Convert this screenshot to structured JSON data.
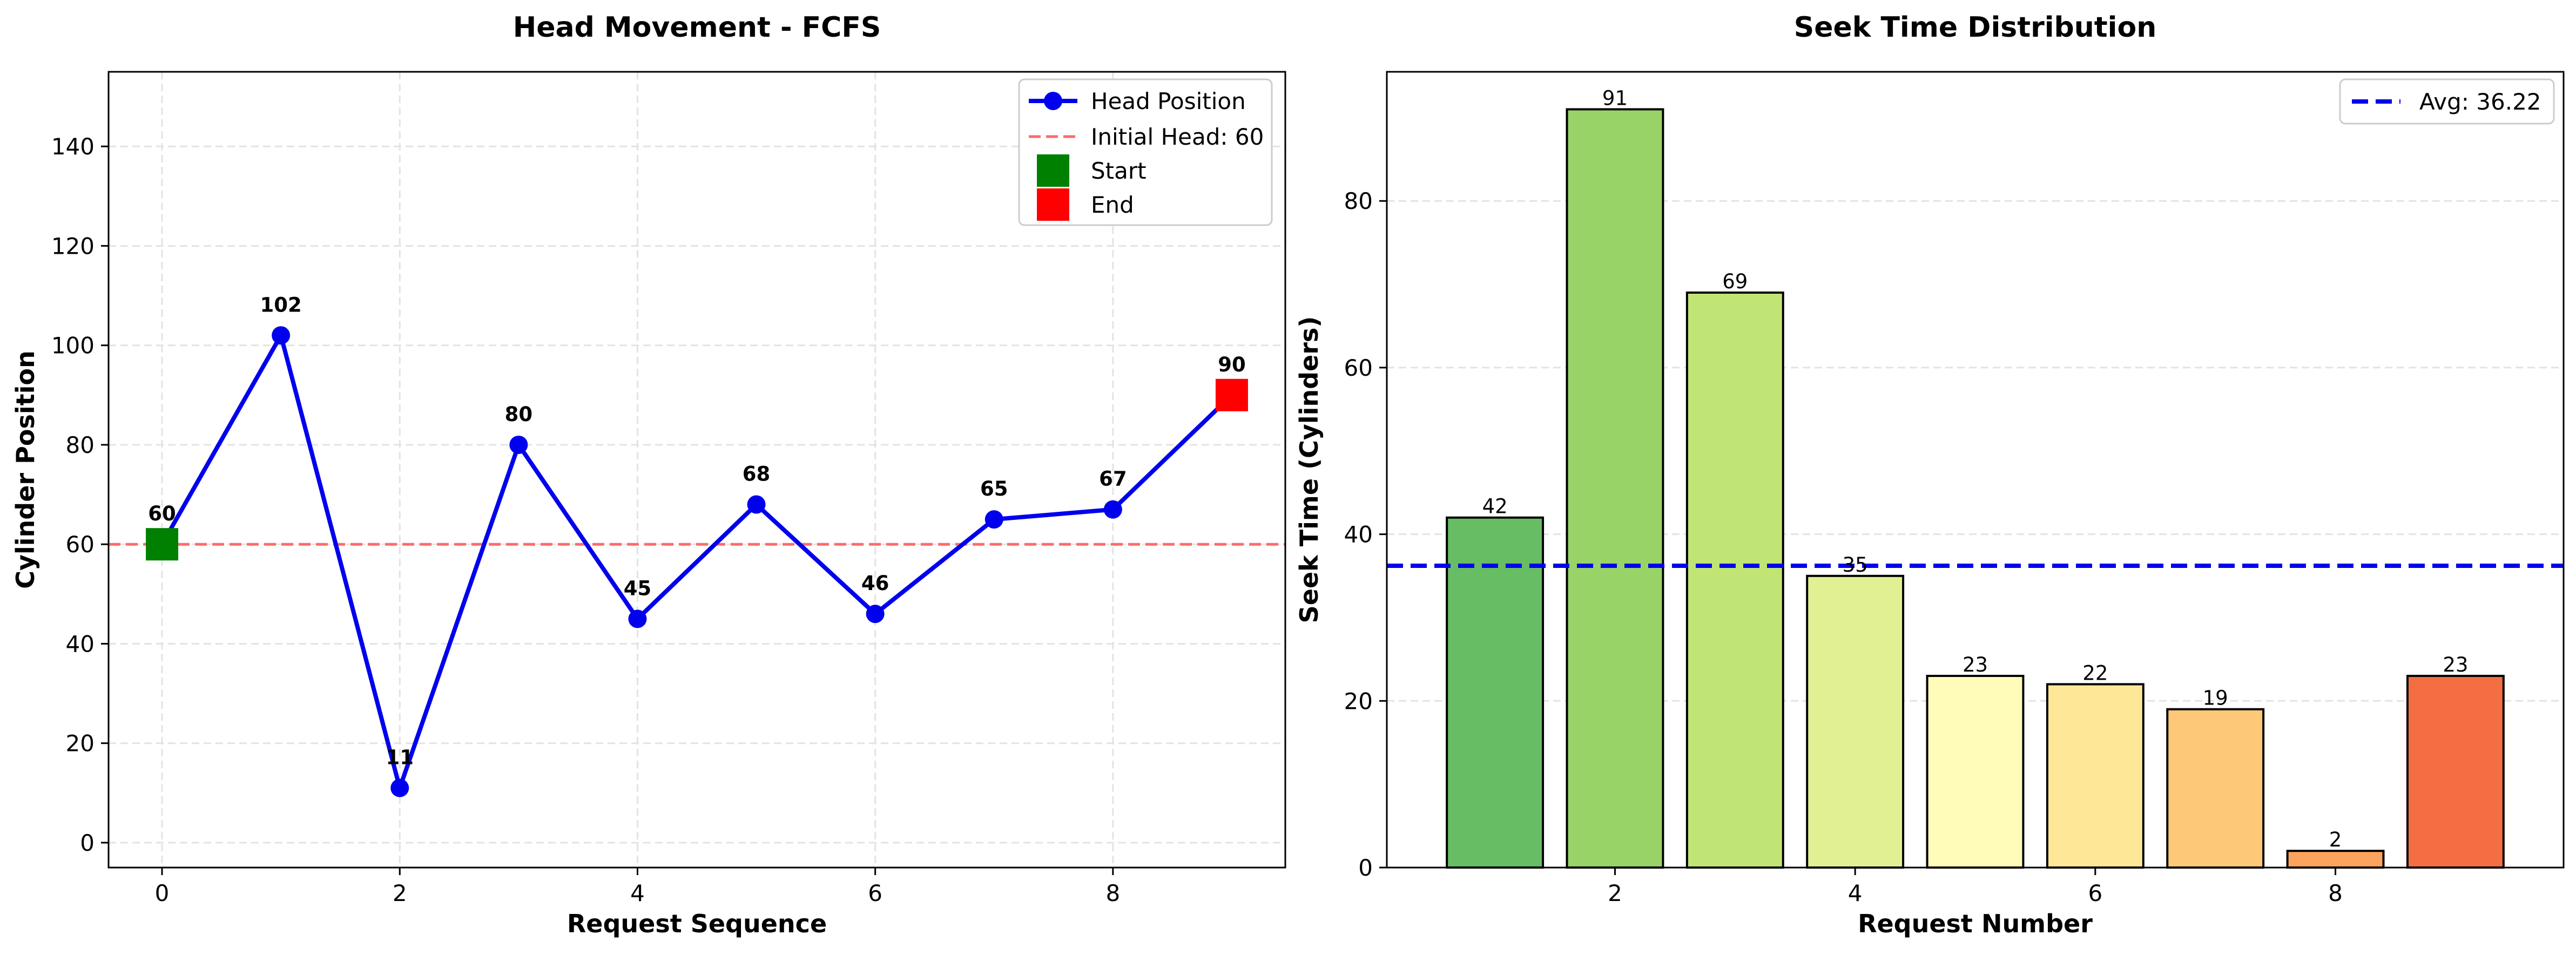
{
  "chart_data": [
    {
      "type": "line",
      "title": "Head Movement - FCFS",
      "xlabel": "Request Sequence",
      "ylabel": "Cylinder Position",
      "xlim": [
        -0.45,
        9.45
      ],
      "ylim": [
        -5,
        155
      ],
      "xticks": [
        0,
        2,
        4,
        6,
        8
      ],
      "yticks": [
        0,
        20,
        40,
        60,
        80,
        100,
        120,
        140
      ],
      "grid": true,
      "legend_position": "top-right",
      "x": [
        0,
        1,
        2,
        3,
        4,
        5,
        6,
        7,
        8,
        9
      ],
      "series": [
        {
          "name": "Head Position",
          "values": [
            60,
            102,
            11,
            80,
            45,
            68,
            46,
            65,
            67,
            90
          ],
          "color": "#0000ee"
        }
      ],
      "point_labels": [
        "60",
        "102",
        "11",
        "80",
        "45",
        "68",
        "46",
        "65",
        "67",
        "90"
      ],
      "reference_line": {
        "name": "Initial Head: 60",
        "value": 60,
        "color": "#ff6b6b"
      },
      "start_marker": {
        "name": "Start",
        "x": 0,
        "y": 60,
        "color": "#008000"
      },
      "end_marker": {
        "name": "End",
        "x": 9,
        "y": 90,
        "color": "#ff0000"
      }
    },
    {
      "type": "bar",
      "title": "Seek Time Distribution",
      "xlabel": "Request Number",
      "ylabel": "Seek Time (Cylinders)",
      "xlim": [
        0.1,
        9.9
      ],
      "ylim": [
        0,
        95.5
      ],
      "xticks": [
        2,
        4,
        6,
        8
      ],
      "yticks": [
        0,
        20,
        40,
        60,
        80
      ],
      "grid": true,
      "legend_position": "top-right",
      "categories": [
        1,
        2,
        3,
        4,
        5,
        6,
        7,
        8,
        9
      ],
      "values": [
        42,
        91,
        69,
        35,
        23,
        22,
        19,
        2,
        23
      ],
      "value_labels": [
        "42",
        "91",
        "69",
        "35",
        "23",
        "22",
        "19",
        "2",
        "23"
      ],
      "colors": [
        "#66bd63",
        "#98d368",
        "#c1e575",
        "#e2f094",
        "#fffcb9",
        "#fee797",
        "#fdc877",
        "#fca35d",
        "#f46d43"
      ],
      "average_line": {
        "name": "Avg: 36.22",
        "value": 36.22,
        "color": "#0000ee"
      }
    }
  ]
}
